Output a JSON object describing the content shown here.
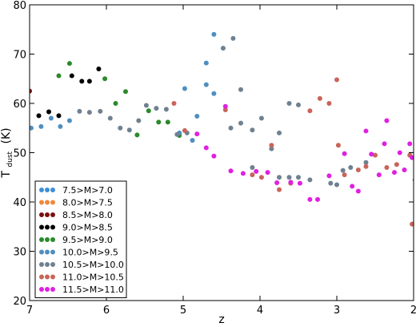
{
  "chart_data": {
    "type": "scatter",
    "xlabel": "z",
    "ylabel_main": "T",
    "ylabel_sub": "dust",
    "ylabel_unit": "(K)",
    "xlim": [
      7,
      2
    ],
    "ylim": [
      20,
      80
    ],
    "xticks": [
      7,
      6,
      5,
      4,
      3,
      2
    ],
    "yticks": [
      20,
      30,
      40,
      50,
      60,
      70,
      80
    ],
    "grid": false,
    "legend_position": "lower-left",
    "series": [
      {
        "name": "7.5>M>7.0",
        "color": "#3d8fd6",
        "points": []
      },
      {
        "name": "8.0>M>7.5",
        "color": "#f0883e",
        "points": []
      },
      {
        "name": "8.5>M>8.0",
        "color": "#7a1010",
        "points": [
          [
            7.0,
            62.5
          ]
        ]
      },
      {
        "name": "9.0>M>8.5",
        "color": "#000000",
        "points": [
          [
            6.88,
            57.5
          ],
          [
            6.75,
            58.3
          ],
          [
            6.62,
            57.5
          ],
          [
            6.45,
            65.6
          ],
          [
            6.32,
            64.5
          ],
          [
            6.22,
            64.5
          ],
          [
            6.1,
            67.0
          ]
        ]
      },
      {
        "name": "9.5>M>9.0",
        "color": "#2a8a2a",
        "points": [
          [
            6.62,
            65.6
          ],
          [
            6.48,
            68.1
          ],
          [
            6.02,
            65.0
          ],
          [
            5.88,
            60.0
          ],
          [
            5.75,
            62.4
          ],
          [
            5.6,
            53.6
          ],
          [
            5.45,
            58.5
          ],
          [
            5.32,
            56.2
          ],
          [
            5.2,
            56.2
          ],
          [
            5.05,
            53.5
          ]
        ]
      },
      {
        "name": "10.0>M>9.5",
        "color": "#4f8fc0",
        "points": [
          [
            6.98,
            55.0
          ],
          [
            6.85,
            55.3
          ],
          [
            6.72,
            57.0
          ],
          [
            6.6,
            55.3
          ],
          [
            6.48,
            56.5
          ],
          [
            5.05,
            54.0
          ],
          [
            4.98,
            63.0
          ],
          [
            4.88,
            52.5
          ],
          [
            4.82,
            57.4
          ],
          [
            4.7,
            68.2
          ],
          [
            4.7,
            63.8
          ],
          [
            4.6,
            74.0
          ],
          [
            4.6,
            62.0
          ]
        ]
      },
      {
        "name": "10.5>M>10.0",
        "color": "#6f8190",
        "points": [
          [
            6.35,
            58.4
          ],
          [
            6.22,
            58.2
          ],
          [
            6.08,
            58.4
          ],
          [
            5.95,
            57.0
          ],
          [
            5.82,
            55.0
          ],
          [
            5.7,
            54.6
          ],
          [
            5.58,
            56.5
          ],
          [
            5.48,
            59.6
          ],
          [
            5.35,
            59.0
          ],
          [
            5.22,
            58.8
          ],
          [
            5.08,
            53.7
          ],
          [
            4.95,
            54.0
          ],
          [
            4.48,
            71.2
          ],
          [
            4.35,
            73.2
          ],
          [
            4.38,
            55.0
          ],
          [
            4.25,
            62.8
          ],
          [
            4.25,
            56.0
          ],
          [
            4.1,
            54.6
          ],
          [
            4.1,
            47.0
          ],
          [
            3.98,
            57.0
          ],
          [
            3.85,
            50.8
          ],
          [
            3.75,
            54.0
          ],
          [
            3.75,
            45.0
          ],
          [
            3.62,
            60.0
          ],
          [
            3.62,
            45.0
          ],
          [
            3.5,
            59.7
          ],
          [
            3.5,
            45.0
          ],
          [
            3.35,
            44.5
          ],
          [
            3.08,
            43.8
          ],
          [
            3.0,
            43.5
          ],
          [
            2.92,
            46.4
          ],
          [
            2.82,
            47.0
          ],
          [
            2.62,
            48.0
          ]
        ]
      },
      {
        "name": "11.0>M>10.5",
        "color": "#c8655a",
        "points": [
          [
            5.12,
            60.0
          ],
          [
            4.98,
            54.5
          ],
          [
            4.45,
            58.7
          ],
          [
            4.1,
            45.5
          ],
          [
            3.98,
            45.0
          ],
          [
            3.85,
            51.5
          ],
          [
            3.75,
            42.5
          ],
          [
            3.6,
            43.8
          ],
          [
            3.35,
            58.5
          ],
          [
            3.22,
            61.0
          ],
          [
            3.1,
            60.0
          ],
          [
            3.0,
            64.8
          ],
          [
            2.98,
            51.5
          ],
          [
            2.9,
            45.5
          ],
          [
            2.72,
            46.5
          ],
          [
            2.62,
            47.2
          ],
          [
            2.5,
            49.5
          ],
          [
            2.35,
            47.0
          ],
          [
            2.22,
            47.6
          ],
          [
            2.05,
            49.5
          ],
          [
            2.02,
            35.5
          ]
        ]
      },
      {
        "name": "11.5>M>11.0",
        "color": "#e020e0",
        "points": [
          [
            4.82,
            53.8
          ],
          [
            4.7,
            51.0
          ],
          [
            4.6,
            49.3
          ],
          [
            4.45,
            59.4
          ],
          [
            4.38,
            46.3
          ],
          [
            4.22,
            45.8
          ],
          [
            4.05,
            46.2
          ],
          [
            3.9,
            46.0
          ],
          [
            3.78,
            43.9
          ],
          [
            3.6,
            44.0
          ],
          [
            3.48,
            43.8
          ],
          [
            3.35,
            40.5
          ],
          [
            3.25,
            40.5
          ],
          [
            3.1,
            45.3
          ],
          [
            2.9,
            49.8
          ],
          [
            2.8,
            43.2
          ],
          [
            2.72,
            42.2
          ],
          [
            2.62,
            54.4
          ],
          [
            2.55,
            49.7
          ],
          [
            2.45,
            45.5
          ],
          [
            2.38,
            51.8
          ],
          [
            2.35,
            56.5
          ],
          [
            2.25,
            46.0
          ],
          [
            2.18,
            50.0
          ],
          [
            2.12,
            46.5
          ],
          [
            2.05,
            51.8
          ],
          [
            1.98,
            44.5
          ],
          [
            1.95,
            45.5
          ],
          [
            2.02,
            49.0
          ]
        ]
      }
    ]
  }
}
